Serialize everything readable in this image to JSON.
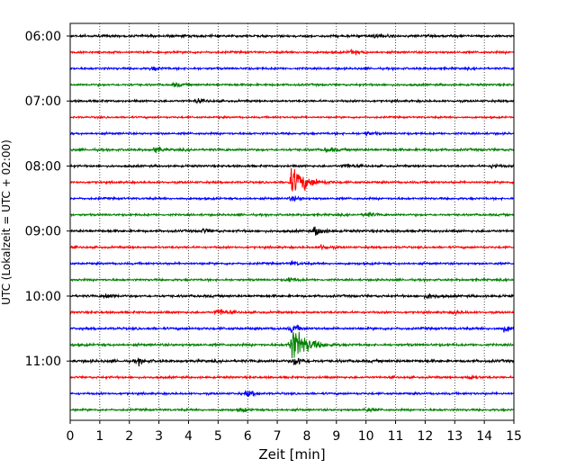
{
  "chart_data": {
    "type": "line",
    "subtype": "helicorder",
    "xlabel": "Zeit  [min]",
    "ylabel": "UTC (Lokalzeit = UTC + 02:00)",
    "xlim": [
      0,
      15
    ],
    "xticks": [
      "0",
      "1",
      "2",
      "3",
      "4",
      "5",
      "6",
      "7",
      "8",
      "9",
      "10",
      "11",
      "12",
      "13",
      "14",
      "15"
    ],
    "yticks": [
      "06:00",
      "07:00",
      "08:00",
      "09:00",
      "10:00",
      "11:00"
    ],
    "grid": "vertical-dotted",
    "trace_interval_minutes": 15,
    "trace_colors": [
      "#000000",
      "#ff0000",
      "#0000ff",
      "#008000"
    ],
    "rows": [
      {
        "start": "06:00",
        "color": "#000000",
        "amplitude": 0.4,
        "events": [
          {
            "t": 10.3,
            "amp": 0.9
          }
        ]
      },
      {
        "start": "06:15",
        "color": "#ff0000",
        "amplitude": 0.35,
        "events": [
          {
            "t": 9.5,
            "amp": 0.7
          }
        ]
      },
      {
        "start": "06:30",
        "color": "#0000ff",
        "amplitude": 0.35,
        "events": [
          {
            "t": 2.8,
            "amp": 0.6
          }
        ]
      },
      {
        "start": "06:45",
        "color": "#008000",
        "amplitude": 0.35,
        "events": [
          {
            "t": 3.5,
            "amp": 0.6
          }
        ]
      },
      {
        "start": "07:00",
        "color": "#000000",
        "amplitude": 0.35,
        "events": [
          {
            "t": 4.3,
            "amp": 0.6
          }
        ]
      },
      {
        "start": "07:15",
        "color": "#ff0000",
        "amplitude": 0.3,
        "events": []
      },
      {
        "start": "07:30",
        "color": "#0000ff",
        "amplitude": 0.35,
        "events": [
          {
            "t": 10.0,
            "amp": 0.6
          }
        ]
      },
      {
        "start": "07:45",
        "color": "#008000",
        "amplitude": 0.4,
        "events": [
          {
            "t": 2.9,
            "amp": 1.0
          },
          {
            "t": 8.7,
            "amp": 0.7
          }
        ]
      },
      {
        "start": "08:00",
        "color": "#000000",
        "amplitude": 0.35,
        "events": [
          {
            "t": 9.3,
            "amp": 0.7
          },
          {
            "t": 14.3,
            "amp": 0.6
          }
        ]
      },
      {
        "start": "08:15",
        "color": "#ff0000",
        "amplitude": 0.35,
        "events": [
          {
            "t": 7.5,
            "amp": 4.5
          }
        ]
      },
      {
        "start": "08:30",
        "color": "#0000ff",
        "amplitude": 0.35,
        "events": [
          {
            "t": 7.5,
            "amp": 0.8
          }
        ]
      },
      {
        "start": "08:45",
        "color": "#008000",
        "amplitude": 0.35,
        "events": [
          {
            "t": 10.0,
            "amp": 0.8
          }
        ]
      },
      {
        "start": "09:00",
        "color": "#000000",
        "amplitude": 0.4,
        "events": [
          {
            "t": 8.3,
            "amp": 1.6
          },
          {
            "t": 4.5,
            "amp": 0.7
          }
        ]
      },
      {
        "start": "09:15",
        "color": "#ff0000",
        "amplitude": 0.35,
        "events": [
          {
            "t": 8.5,
            "amp": 0.8
          }
        ]
      },
      {
        "start": "09:30",
        "color": "#0000ff",
        "amplitude": 0.35,
        "events": [
          {
            "t": 7.5,
            "amp": 0.6
          }
        ]
      },
      {
        "start": "09:45",
        "color": "#008000",
        "amplitude": 0.35,
        "events": [
          {
            "t": 7.4,
            "amp": 0.9
          }
        ]
      },
      {
        "start": "10:00",
        "color": "#000000",
        "amplitude": 0.4,
        "events": [
          {
            "t": 1.2,
            "amp": 0.8
          },
          {
            "t": 12.1,
            "amp": 0.8
          }
        ]
      },
      {
        "start": "10:15",
        "color": "#ff0000",
        "amplitude": 0.35,
        "events": [
          {
            "t": 5.0,
            "amp": 1.2
          },
          {
            "t": 13.0,
            "amp": 0.6
          }
        ]
      },
      {
        "start": "10:30",
        "color": "#0000ff",
        "amplitude": 0.4,
        "events": [
          {
            "t": 7.5,
            "amp": 1.3
          },
          {
            "t": 14.7,
            "amp": 1.0
          }
        ]
      },
      {
        "start": "10:45",
        "color": "#008000",
        "amplitude": 0.4,
        "events": [
          {
            "t": 7.5,
            "amp": 5.5
          }
        ]
      },
      {
        "start": "11:00",
        "color": "#000000",
        "amplitude": 0.45,
        "events": [
          {
            "t": 7.6,
            "amp": 1.5
          },
          {
            "t": 2.3,
            "amp": 0.9
          }
        ]
      },
      {
        "start": "11:15",
        "color": "#ff0000",
        "amplitude": 0.35,
        "events": [
          {
            "t": 13.5,
            "amp": 0.6
          }
        ]
      },
      {
        "start": "11:30",
        "color": "#0000ff",
        "amplitude": 0.35,
        "events": [
          {
            "t": 6.0,
            "amp": 1.0
          }
        ]
      },
      {
        "start": "11:45",
        "color": "#008000",
        "amplitude": 0.35,
        "events": [
          {
            "t": 5.8,
            "amp": 0.6
          },
          {
            "t": 10.0,
            "amp": 0.6
          }
        ]
      }
    ]
  }
}
